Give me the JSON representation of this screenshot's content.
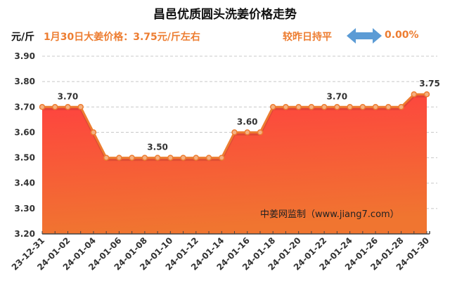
{
  "title": "昌邑优质圆头洗姜价格走势",
  "unit": "元/斤",
  "headline": "1月30日大姜价格：3.75元/斤左右",
  "change": {
    "label": "较昨日持平",
    "icon": "left-right-arrow-icon",
    "value": "0.00%",
    "arrow_color": "#5B9BD5"
  },
  "watermark": "中姜网监制（www.jiang7.com）",
  "colors": {
    "line": "#ED7D31",
    "area_top": "#FF4040",
    "area_bottom": "#F07530",
    "text_accent": "#ED7D31"
  },
  "chart_data": {
    "type": "area",
    "title": "昌邑优质圆头洗姜价格走势",
    "xlabel": "",
    "ylabel": "元/斤",
    "ylim": [
      3.2,
      3.9
    ],
    "yticks": [
      "3.20",
      "3.30",
      "3.40",
      "3.50",
      "3.60",
      "3.70",
      "3.80",
      "3.90"
    ],
    "grid": true,
    "x": [
      "23-12-31",
      "24-01-01",
      "24-01-02",
      "24-01-03",
      "24-01-04",
      "24-01-05",
      "24-01-06",
      "24-01-07",
      "24-01-08",
      "24-01-09",
      "24-01-10",
      "24-01-11",
      "24-01-12",
      "24-01-13",
      "24-01-14",
      "24-01-15",
      "24-01-16",
      "24-01-17",
      "24-01-18",
      "24-01-19",
      "24-01-20",
      "24-01-21",
      "24-01-22",
      "24-01-23",
      "24-01-24",
      "24-01-25",
      "24-01-26",
      "24-01-27",
      "24-01-28",
      "24-01-29",
      "24-01-30"
    ],
    "xtick_labels": [
      "23-12-31",
      "24-01-02",
      "24-01-04",
      "24-01-06",
      "24-01-08",
      "24-01-10",
      "24-01-12",
      "24-01-14",
      "24-01-16",
      "24-01-18",
      "24-01-20",
      "24-01-22",
      "24-01-24",
      "24-01-26",
      "24-01-28",
      "24-01-30"
    ],
    "series": [
      {
        "name": "价格",
        "values": [
          3.7,
          3.7,
          3.7,
          3.7,
          3.6,
          3.5,
          3.5,
          3.5,
          3.5,
          3.5,
          3.5,
          3.5,
          3.5,
          3.5,
          3.5,
          3.6,
          3.6,
          3.6,
          3.7,
          3.7,
          3.7,
          3.7,
          3.7,
          3.7,
          3.7,
          3.7,
          3.7,
          3.7,
          3.7,
          3.75,
          3.75
        ]
      }
    ],
    "annotations": [
      {
        "index": 2,
        "text": "3.70"
      },
      {
        "index": 9,
        "text": "3.50"
      },
      {
        "index": 16,
        "text": "3.60"
      },
      {
        "index": 23,
        "text": "3.70"
      },
      {
        "index": 30,
        "text": "3.75"
      }
    ]
  }
}
